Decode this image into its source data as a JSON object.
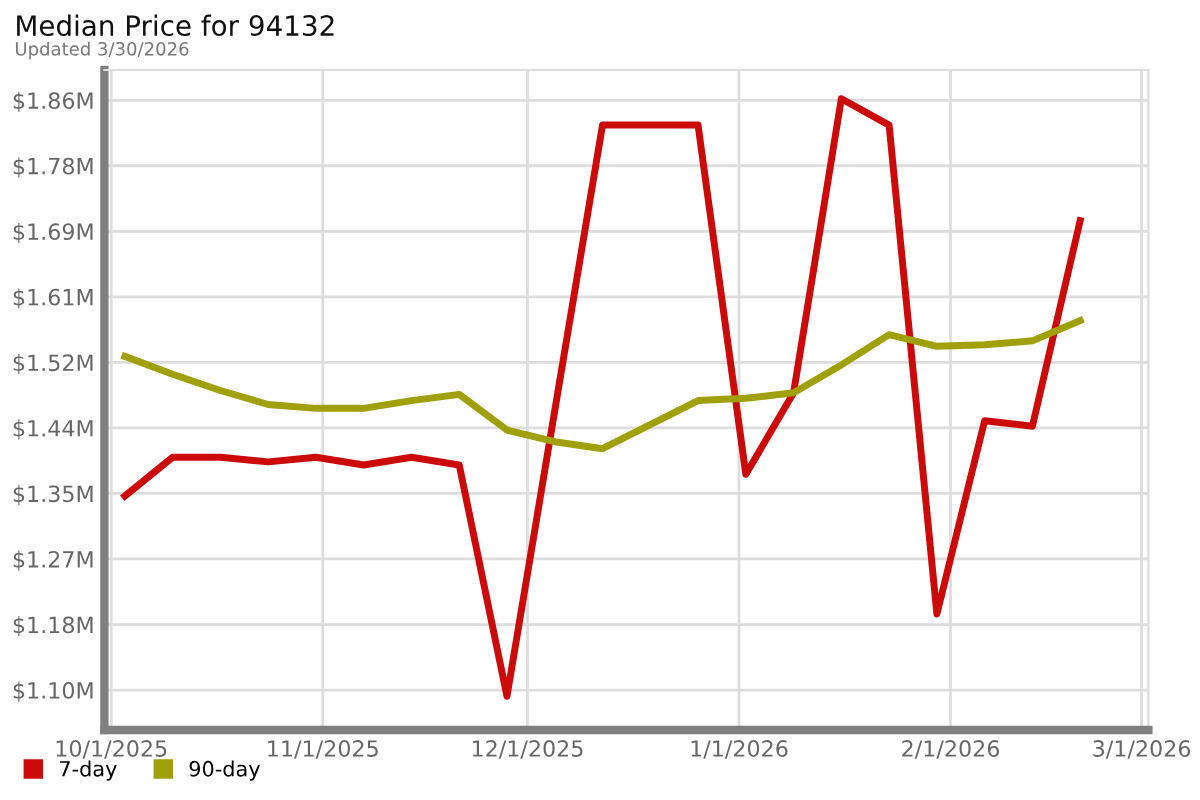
{
  "chart_data": {
    "type": "line",
    "title": "Median Price for 94132",
    "subtitle": "Updated 3/30/2026",
    "x": [
      "2025-10-03",
      "2025-10-10",
      "2025-10-17",
      "2025-10-24",
      "2025-10-31",
      "2025-11-07",
      "2025-11-14",
      "2025-11-21",
      "2025-11-28",
      "2025-12-05",
      "2025-12-12",
      "2025-12-19",
      "2025-12-26",
      "2026-01-02",
      "2026-01-09",
      "2026-01-16",
      "2026-01-23",
      "2026-01-30",
      "2026-02-06",
      "2026-02-13",
      "2026-02-20"
    ],
    "series": [
      {
        "name": "7-day",
        "color": "#cc0a0a",
        "values": [
          1.35,
          1.4,
          1.4,
          1.394,
          1.4,
          1.39,
          1.4,
          1.39,
          1.092,
          1.46,
          1.828,
          1.828,
          1.828,
          1.378,
          1.483,
          1.862,
          1.828,
          1.198,
          1.447,
          1.44,
          1.705
        ]
      },
      {
        "name": "90-day",
        "color": "#a0a00a",
        "values": [
          1.53,
          1.507,
          1.486,
          1.468,
          1.463,
          1.463,
          1.473,
          1.481,
          1.435,
          1.42,
          1.411,
          1.442,
          1.473,
          1.476,
          1.483,
          1.519,
          1.558,
          1.543,
          1.545,
          1.55,
          1.576
        ]
      }
    ],
    "xlim": [
      "2025-09-30",
      "2026-03-02"
    ],
    "xticks": [
      {
        "value": "2025-10-01",
        "label": "10/1/2025"
      },
      {
        "value": "2025-11-01",
        "label": "11/1/2025"
      },
      {
        "value": "2025-12-01",
        "label": "12/1/2025"
      },
      {
        "value": "2026-01-01",
        "label": "1/1/2026"
      },
      {
        "value": "2026-02-01",
        "label": "2/1/2026"
      },
      {
        "value": "2026-03-01",
        "label": "3/1/2026"
      }
    ],
    "ylim": [
      1.0485,
      1.899
    ],
    "yticks": [
      {
        "value": 1.1,
        "label": "$1.10M"
      },
      {
        "value": 1.1844,
        "label": "$1.18M"
      },
      {
        "value": 1.2689,
        "label": "$1.27M"
      },
      {
        "value": 1.3533,
        "label": "$1.35M"
      },
      {
        "value": 1.4378,
        "label": "$1.44M"
      },
      {
        "value": 1.5222,
        "label": "$1.52M"
      },
      {
        "value": 1.6067,
        "label": "$1.61M"
      },
      {
        "value": 1.6911,
        "label": "$1.69M"
      },
      {
        "value": 1.7756,
        "label": "$1.78M"
      },
      {
        "value": 1.86,
        "label": "$1.86M"
      }
    ],
    "grid": true,
    "legend": "bottom left",
    "marker": "none",
    "line_style": "solid"
  }
}
